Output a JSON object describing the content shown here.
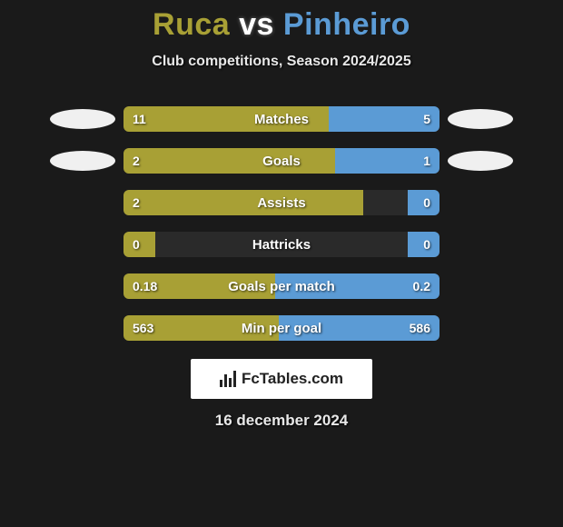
{
  "title": {
    "player1": "Ruca",
    "vs": "vs",
    "player2": "Pinheiro",
    "player1_color": "#a8a035",
    "player2_color": "#5b9bd5"
  },
  "subtitle": "Club competitions, Season 2024/2025",
  "colors": {
    "left_bar": "#a8a035",
    "right_bar": "#5b9bd5",
    "track": "#2a2a2a",
    "background": "#1a1a1a",
    "ellipse": "#f0f0f0"
  },
  "show_badges_on_rows": [
    0,
    1
  ],
  "stats": [
    {
      "label": "Matches",
      "left_val": "11",
      "right_val": "5",
      "left_pct": 65,
      "right_pct": 35
    },
    {
      "label": "Goals",
      "left_val": "2",
      "right_val": "1",
      "left_pct": 67,
      "right_pct": 33
    },
    {
      "label": "Assists",
      "left_val": "2",
      "right_val": "0",
      "left_pct": 76,
      "right_pct": 10
    },
    {
      "label": "Hattricks",
      "left_val": "0",
      "right_val": "0",
      "left_pct": 10,
      "right_pct": 10
    },
    {
      "label": "Goals per match",
      "left_val": "0.18",
      "right_val": "0.2",
      "left_pct": 48,
      "right_pct": 52
    },
    {
      "label": "Min per goal",
      "left_val": "563",
      "right_val": "586",
      "left_pct": 49,
      "right_pct": 51
    }
  ],
  "footer_brand": "FcTables.com",
  "date": "16 december 2024"
}
